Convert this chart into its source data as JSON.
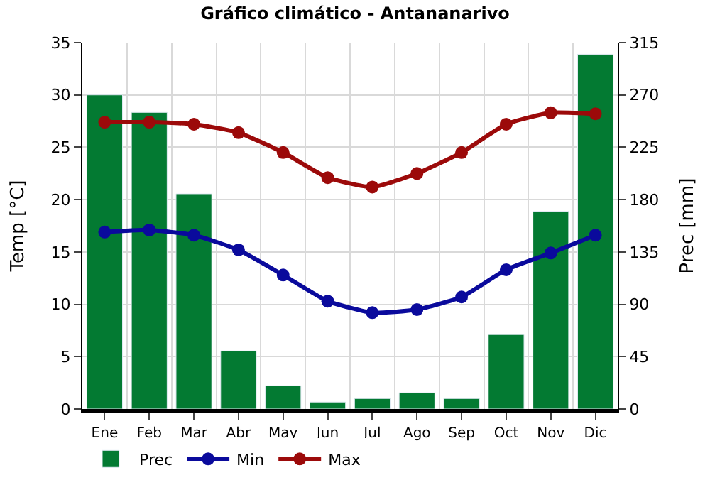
{
  "chart_data": {
    "type": "line",
    "title": "Gráfico climático - Antananarivo",
    "ylabel": "Temp [°C]",
    "y2label": "Prec [mm]",
    "categories": [
      "Ene",
      "Feb",
      "Mar",
      "Abr",
      "May",
      "Jun",
      "Jul",
      "Ago",
      "Sep",
      "Oct",
      "Nov",
      "Dic"
    ],
    "series": [
      {
        "name": "Prec",
        "type": "bar",
        "axis": "y2",
        "color": "#037a32",
        "values": [
          270,
          255,
          185,
          50,
          20,
          6,
          9,
          14,
          9,
          64,
          170,
          305
        ]
      },
      {
        "name": "Min",
        "color": "#0a0a9c",
        "marker": "circle",
        "values": [
          16.9,
          17.1,
          16.6,
          15.2,
          12.8,
          10.3,
          9.2,
          9.5,
          10.7,
          13.3,
          14.9,
          16.6
        ]
      },
      {
        "name": "Max",
        "color": "#9c0a0a",
        "marker": "circle",
        "values": [
          27.4,
          27.4,
          27.2,
          26.4,
          24.5,
          22.1,
          21.2,
          22.5,
          24.5,
          27.2,
          28.3,
          28.2
        ]
      }
    ],
    "ylim": [
      0,
      35
    ],
    "yticks": [
      0,
      5,
      10,
      15,
      20,
      25,
      30,
      35
    ],
    "y2lim": [
      0,
      315
    ],
    "y2ticks": [
      0,
      45,
      90,
      135,
      180,
      225,
      270,
      315
    ],
    "grid": true,
    "legend": "bottom"
  }
}
